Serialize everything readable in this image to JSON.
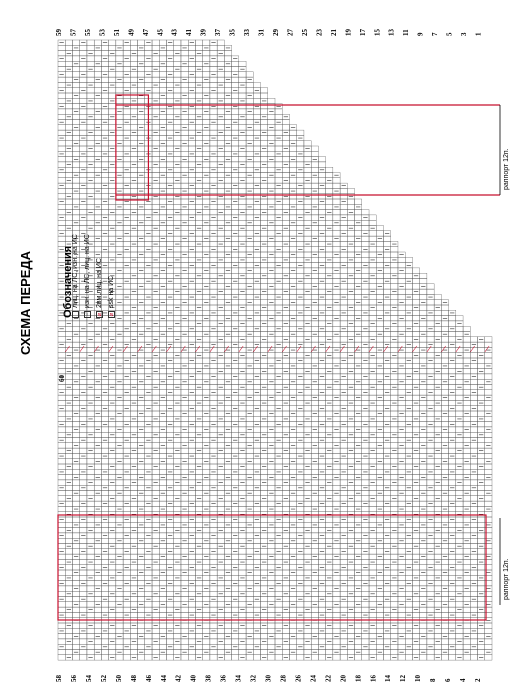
{
  "title": "СХЕМА ПЕРЕДА",
  "legend": {
    "title": "Обозначения",
    "items": [
      {
        "symbol": "",
        "label": "лиц. на ЛС, изн. на ИС"
      },
      {
        "symbol": "−",
        "label": "изн. на ЛС, лиц. на ИС"
      },
      {
        "symbol": "⌀",
        "label": "2вм.лиц. на ИС"
      },
      {
        "symbol": "⌀",
        "label": "ssk на ИС"
      }
    ]
  },
  "repeat_label": "раппорт 12п.",
  "row_labels_top": [
    "59",
    "57",
    "55",
    "53",
    "51",
    "49",
    "47",
    "45",
    "43",
    "41",
    "39",
    "37",
    "35",
    "33",
    "31",
    "29",
    "27",
    "25",
    "23",
    "21",
    "19",
    "17",
    "15",
    "13",
    "11",
    "9",
    "7",
    "5",
    "3",
    "1"
  ],
  "row_labels_bottom": [
    "58",
    "56",
    "54",
    "52",
    "50",
    "48",
    "46",
    "44",
    "42",
    "40",
    "38",
    "36",
    "34",
    "32",
    "30",
    "28",
    "26",
    "24",
    "22",
    "20",
    "18",
    "16",
    "14",
    "12",
    "10",
    "8",
    "6",
    "4",
    "2"
  ],
  "center_row_label": "60",
  "colors": {
    "grid": "#555555",
    "repeat": "#c8102e",
    "mark": "#000000"
  }
}
